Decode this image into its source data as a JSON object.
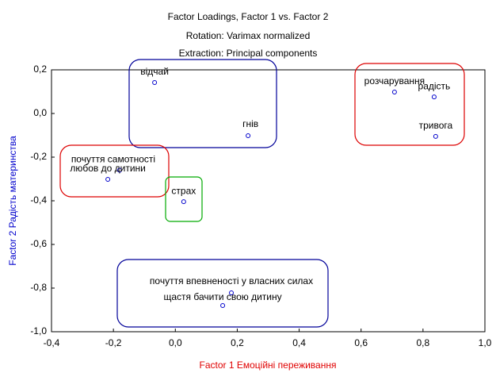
{
  "chart_data": {
    "type": "scatter",
    "title": "Factor Loadings, Factor 1 vs. Factor 2",
    "subtitle": [
      "Rotation: Varimax normalized",
      "Extraction: Principal components"
    ],
    "x_label": "Factor 1 Емоційні переживання",
    "y_label": "Factor 2 Радість материнства",
    "labels": [
      "відчай",
      "гнів",
      "розчарування",
      "радість",
      "тривога",
      "почуття самотності",
      "любов до дитини",
      "страх",
      "почуття впевненості у власних силах",
      "щастя бачити свою дитину"
    ],
    "x": [
      -0.067,
      0.235,
      0.708,
      0.836,
      0.841,
      -0.18,
      -0.218,
      0.027,
      0.181,
      0.153
    ],
    "values": [
      0.142,
      -0.102,
      0.098,
      0.076,
      -0.105,
      -0.26,
      -0.302,
      -0.404,
      -0.822,
      -0.88
    ],
    "color": "#0000cc",
    "xlim": [
      -0.4,
      1.0
    ],
    "ylim": [
      -1.0,
      0.2
    ],
    "xticks": [
      {
        "value": -0.4,
        "label": "-0,4"
      },
      {
        "value": -0.2,
        "label": "-0,2"
      },
      {
        "value": 0,
        "label": "0,0"
      },
      {
        "value": 0.2,
        "label": "0,2"
      },
      {
        "value": 0.4,
        "label": "0,4"
      },
      {
        "value": 0.6,
        "label": "0,6"
      },
      {
        "value": 0.8,
        "label": "0,8"
      },
      {
        "value": 1.0,
        "label": "1,0"
      }
    ],
    "yticks": [
      {
        "value": 0.2,
        "label": "0,2"
      },
      {
        "value": 0,
        "label": "0,0"
      },
      {
        "value": -0.2,
        "label": "-0,2"
      },
      {
        "value": -0.4,
        "label": "-0,4"
      },
      {
        "value": -0.6,
        "label": "-0,6"
      },
      {
        "value": -0.8,
        "label": "-0,8"
      },
      {
        "value": -1.0,
        "label": "-1,0"
      }
    ],
    "grid": false
  }
}
